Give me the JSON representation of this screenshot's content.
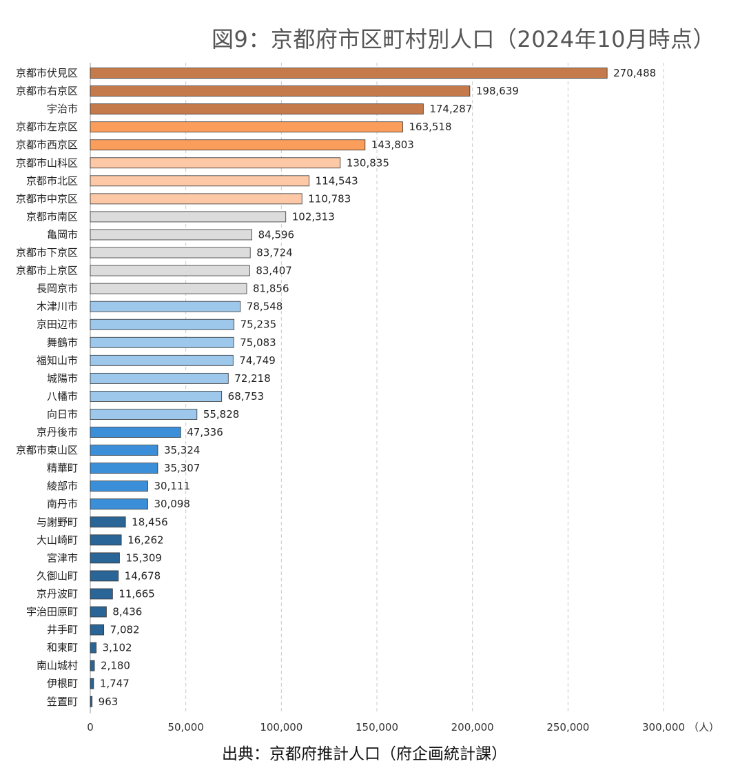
{
  "chart_data": {
    "type": "bar",
    "orientation": "horizontal",
    "title": "図9：京都府市区町村別人口（2024年10月時点）",
    "source": "出典：京都府推計人口（府企画統計課）",
    "xunit": "（人）",
    "xlim": [
      0,
      300000
    ],
    "xticks": [
      0,
      50000,
      100000,
      150000,
      200000,
      250000,
      300000
    ],
    "xtick_labels": [
      "0",
      "50,000",
      "100,000",
      "150,000",
      "200,000",
      "250,000",
      "300,000"
    ],
    "grid": "vertical-dashed",
    "categories": [
      "京都市伏見区",
      "京都市右京区",
      "宇治市",
      "京都市左京区",
      "京都市西京区",
      "京都市山科区",
      "京都市北区",
      "京都市中京区",
      "京都市南区",
      "亀岡市",
      "京都市下京区",
      "京都市上京区",
      "長岡京市",
      "木津川市",
      "京田辺市",
      "舞鶴市",
      "福知山市",
      "城陽市",
      "八幡市",
      "向日市",
      "京丹後市",
      "京都市東山区",
      "精華町",
      "綾部市",
      "南丹市",
      "与謝野町",
      "大山崎町",
      "宮津市",
      "久御山町",
      "京丹波町",
      "宇治田原町",
      "井手町",
      "和束町",
      "南山城村",
      "伊根町",
      "笠置町"
    ],
    "values": [
      270488,
      198639,
      174287,
      163518,
      143803,
      130835,
      114543,
      110783,
      102313,
      84596,
      83724,
      83407,
      81856,
      78548,
      75235,
      75083,
      74749,
      72218,
      68753,
      55828,
      47336,
      35324,
      35307,
      30111,
      30098,
      18456,
      16262,
      15309,
      14678,
      11665,
      8436,
      7082,
      3102,
      2180,
      1747,
      963
    ],
    "value_labels": [
      "270,488",
      "198,639",
      "174,287",
      "163,518",
      "143,803",
      "130,835",
      "114,543",
      "110,783",
      "102,313",
      "84,596",
      "83,724",
      "83,407",
      "81,856",
      "78,548",
      "75,235",
      "75,083",
      "74,749",
      "72,218",
      "68,753",
      "55,828",
      "47,336",
      "35,324",
      "35,307",
      "30,111",
      "30,098",
      "18,456",
      "16,262",
      "15,309",
      "14,678",
      "11,665",
      "8,436",
      "7,082",
      "3,102",
      "2,180",
      "1,747",
      "963"
    ],
    "bar_colors": [
      "#c47a4a",
      "#c47a4a",
      "#c47a4a",
      "#fb9e5c",
      "#fb9e5c",
      "#fcc8a6",
      "#fcc8a6",
      "#fcc8a6",
      "#dcdcdc",
      "#dcdcdc",
      "#dcdcdc",
      "#dcdcdc",
      "#dcdcdc",
      "#9dc8ec",
      "#9dc8ec",
      "#9dc8ec",
      "#9dc8ec",
      "#9dc8ec",
      "#9dc8ec",
      "#9dc8ec",
      "#3b8fd8",
      "#3b8fd8",
      "#3b8fd8",
      "#3b8fd8",
      "#3b8fd8",
      "#2a6597",
      "#2a6597",
      "#2a6597",
      "#2a6597",
      "#2a6597",
      "#2a6597",
      "#2a6597",
      "#2a6597",
      "#2a6597",
      "#2a6597",
      "#2a6597"
    ]
  }
}
